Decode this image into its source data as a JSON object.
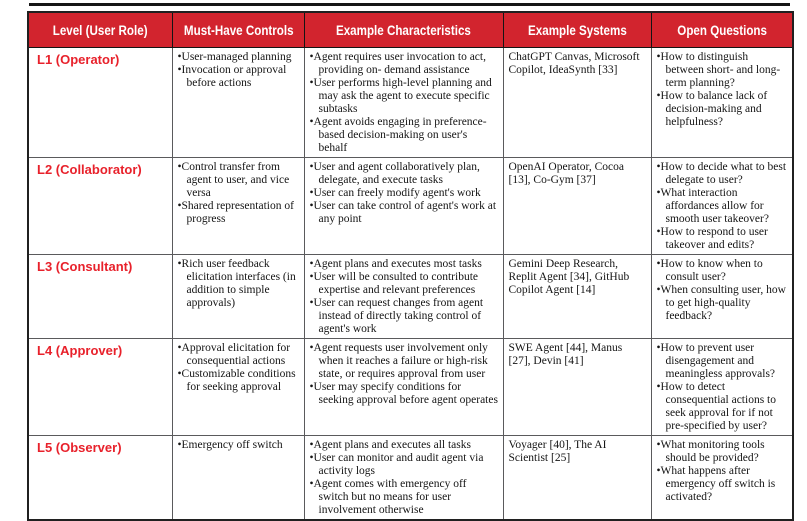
{
  "table": {
    "headers": [
      "Level (User Role)",
      "Must-Have Controls",
      "Example Characteristics",
      "Example Systems",
      "Open Questions"
    ],
    "rows": [
      {
        "level": "L1 (Operator)",
        "controls": [
          "User-managed planning",
          "Invocation or approval before actions"
        ],
        "characteristics": [
          "Agent requires user invocation to act, providing on- demand assistance",
          "User performs high-level planning and may ask the agent to execute specific subtasks",
          "Agent avoids engaging in preference-based decision-making on user's behalf"
        ],
        "systems": "ChatGPT Canvas, Microsoft Copilot, IdeaSynth [33]",
        "questions": [
          "How to distinguish between short- and long-term planning?",
          "How to balance lack of decision-making and helpfulness?"
        ]
      },
      {
        "level": "L2 (Collaborator)",
        "controls": [
          "Control transfer from agent to user, and vice versa",
          "Shared representation of progress"
        ],
        "characteristics": [
          "User and agent collaboratively plan, delegate, and execute tasks",
          "User can freely modify agent's work",
          "User can take control of agent's work at any point"
        ],
        "systems": "OpenAI Operator, Cocoa [13], Co-Gym [37]",
        "questions": [
          "How to decide what to best delegate to user?",
          "What interaction affordances allow for smooth user takeover?",
          "How to respond to user takeover and edits?"
        ]
      },
      {
        "level": "L3 (Consultant)",
        "controls": [
          "Rich user feedback elicitation interfaces (in addition to simple approvals)"
        ],
        "characteristics": [
          "Agent plans and executes most tasks",
          "User will be consulted to contribute expertise and relevant preferences",
          "User can request changes from agent instead of directly taking control of agent's work"
        ],
        "systems": "Gemini Deep Research, Replit Agent [34], GitHub Copilot Agent [14]",
        "questions": [
          "How to know when to consult user?",
          "When consulting user, how to get high-quality feedback?"
        ]
      },
      {
        "level": "L4 (Approver)",
        "controls": [
          "Approval elicitation for consequential actions",
          "Customizable conditions for seeking approval"
        ],
        "characteristics": [
          "Agent requests user involvement only when it reaches a failure or high-risk state, or requires approval from user",
          "User may specify conditions for seeking approval before agent operates"
        ],
        "systems": "SWE Agent [44], Manus [27], Devin [41]",
        "questions": [
          "How to prevent user disengagement and meaningless approvals?",
          "How to detect consequential actions to seek approval for if not pre-specified by user?"
        ]
      },
      {
        "level": "L5 (Observer)",
        "controls": [
          "Emergency off switch"
        ],
        "characteristics": [
          "Agent plans and executes all tasks",
          "User can monitor and audit agent via activity logs",
          "Agent comes with emergency off switch but no means for user involvement otherwise"
        ],
        "systems": "Voyager [40], The AI Scientist [25]",
        "questions": [
          "What monitoring tools should be provided?",
          "What happens after emergency off switch is activated?"
        ]
      }
    ],
    "colors": {
      "header_bg": "#d2242e",
      "header_text": "#ffffff",
      "level_text": "#e8212b",
      "body_text": "#141414",
      "grid_line": "#5a5a5c",
      "outer_border": "#202020"
    }
  }
}
